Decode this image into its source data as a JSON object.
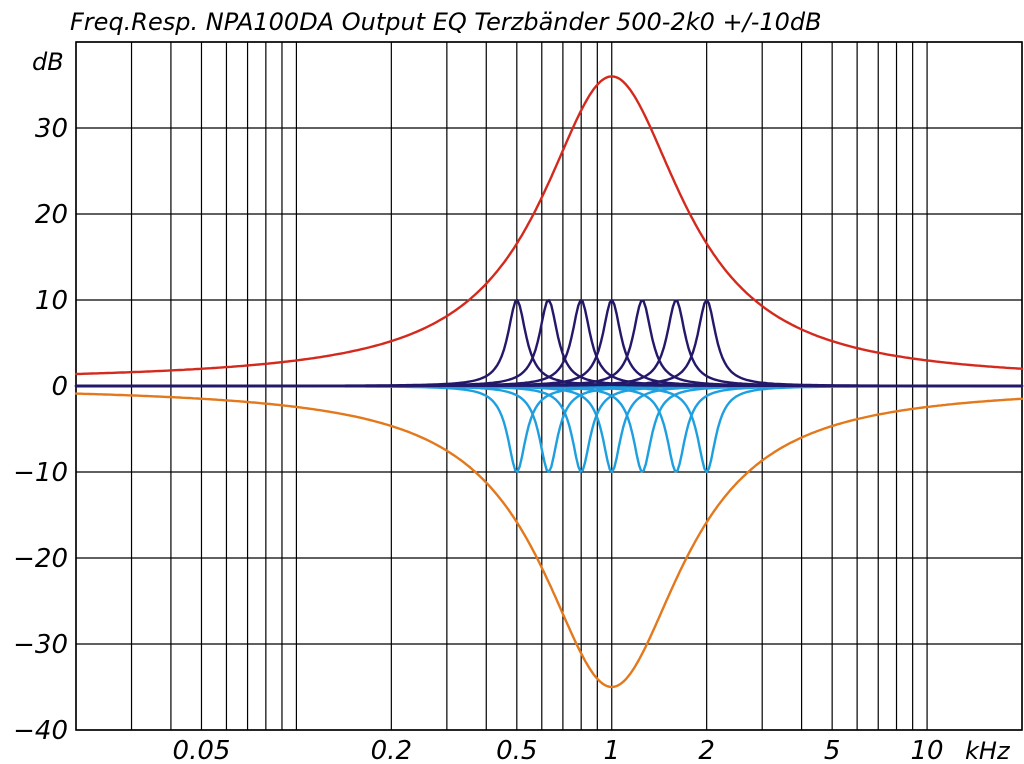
{
  "chart_data": {
    "type": "line",
    "title": "Freq.Resp. NPA100DA Output EQ Terzbänder 500-2k0 +/-10dB",
    "ylabel": "dB",
    "xunit": "kHz",
    "x_scale": "log",
    "xlim": [
      0.02,
      20
    ],
    "ylim": [
      -40,
      40
    ],
    "y_ticks": [
      -40,
      -30,
      -20,
      -10,
      0,
      10,
      20,
      30
    ],
    "y_tick_labels": [
      "−40",
      "−30",
      "−20",
      "−10",
      "0",
      "10",
      "20",
      "30"
    ],
    "x_tick_values": [
      0.05,
      0.2,
      0.5,
      1,
      2,
      5,
      10
    ],
    "x_tick_labels": [
      "0.05",
      "0.2",
      "0.5",
      "1",
      "2",
      "5",
      "10"
    ],
    "grid": true,
    "series": [
      {
        "color": "#d42a1e",
        "peak": 35.5,
        "center_khz": 1.0,
        "q": 0.55,
        "role": "sum boost"
      },
      {
        "color": "#e3791c",
        "peak": -35.0,
        "center_khz": 1.0,
        "q": 0.55,
        "role": "sum cut"
      },
      {
        "color": "#23186a",
        "peak": 10,
        "center_khz": 0.5,
        "q": 4.3
      },
      {
        "color": "#23186a",
        "peak": 10,
        "center_khz": 0.63,
        "q": 4.3
      },
      {
        "color": "#23186a",
        "peak": 10,
        "center_khz": 0.8,
        "q": 4.3
      },
      {
        "color": "#23186a",
        "peak": 10,
        "center_khz": 1.0,
        "q": 4.3
      },
      {
        "color": "#23186a",
        "peak": 10,
        "center_khz": 1.25,
        "q": 4.3
      },
      {
        "color": "#23186a",
        "peak": 10,
        "center_khz": 1.6,
        "q": 4.3
      },
      {
        "color": "#23186a",
        "peak": 10,
        "center_khz": 2.0,
        "q": 4.3
      },
      {
        "color": "#1e9fdf",
        "peak": -10,
        "center_khz": 0.5,
        "q": 4.3
      },
      {
        "color": "#1e9fdf",
        "peak": -10,
        "center_khz": 0.63,
        "q": 4.3
      },
      {
        "color": "#1e9fdf",
        "peak": -10,
        "center_khz": 0.8,
        "q": 4.3
      },
      {
        "color": "#1e9fdf",
        "peak": -10,
        "center_khz": 1.0,
        "q": 4.3
      },
      {
        "color": "#1e9fdf",
        "peak": -10,
        "center_khz": 1.25,
        "q": 4.3
      },
      {
        "color": "#1e9fdf",
        "peak": -10,
        "center_khz": 1.6,
        "q": 4.3
      },
      {
        "color": "#1e9fdf",
        "peak": -10,
        "center_khz": 2.0,
        "q": 4.3
      }
    ]
  }
}
